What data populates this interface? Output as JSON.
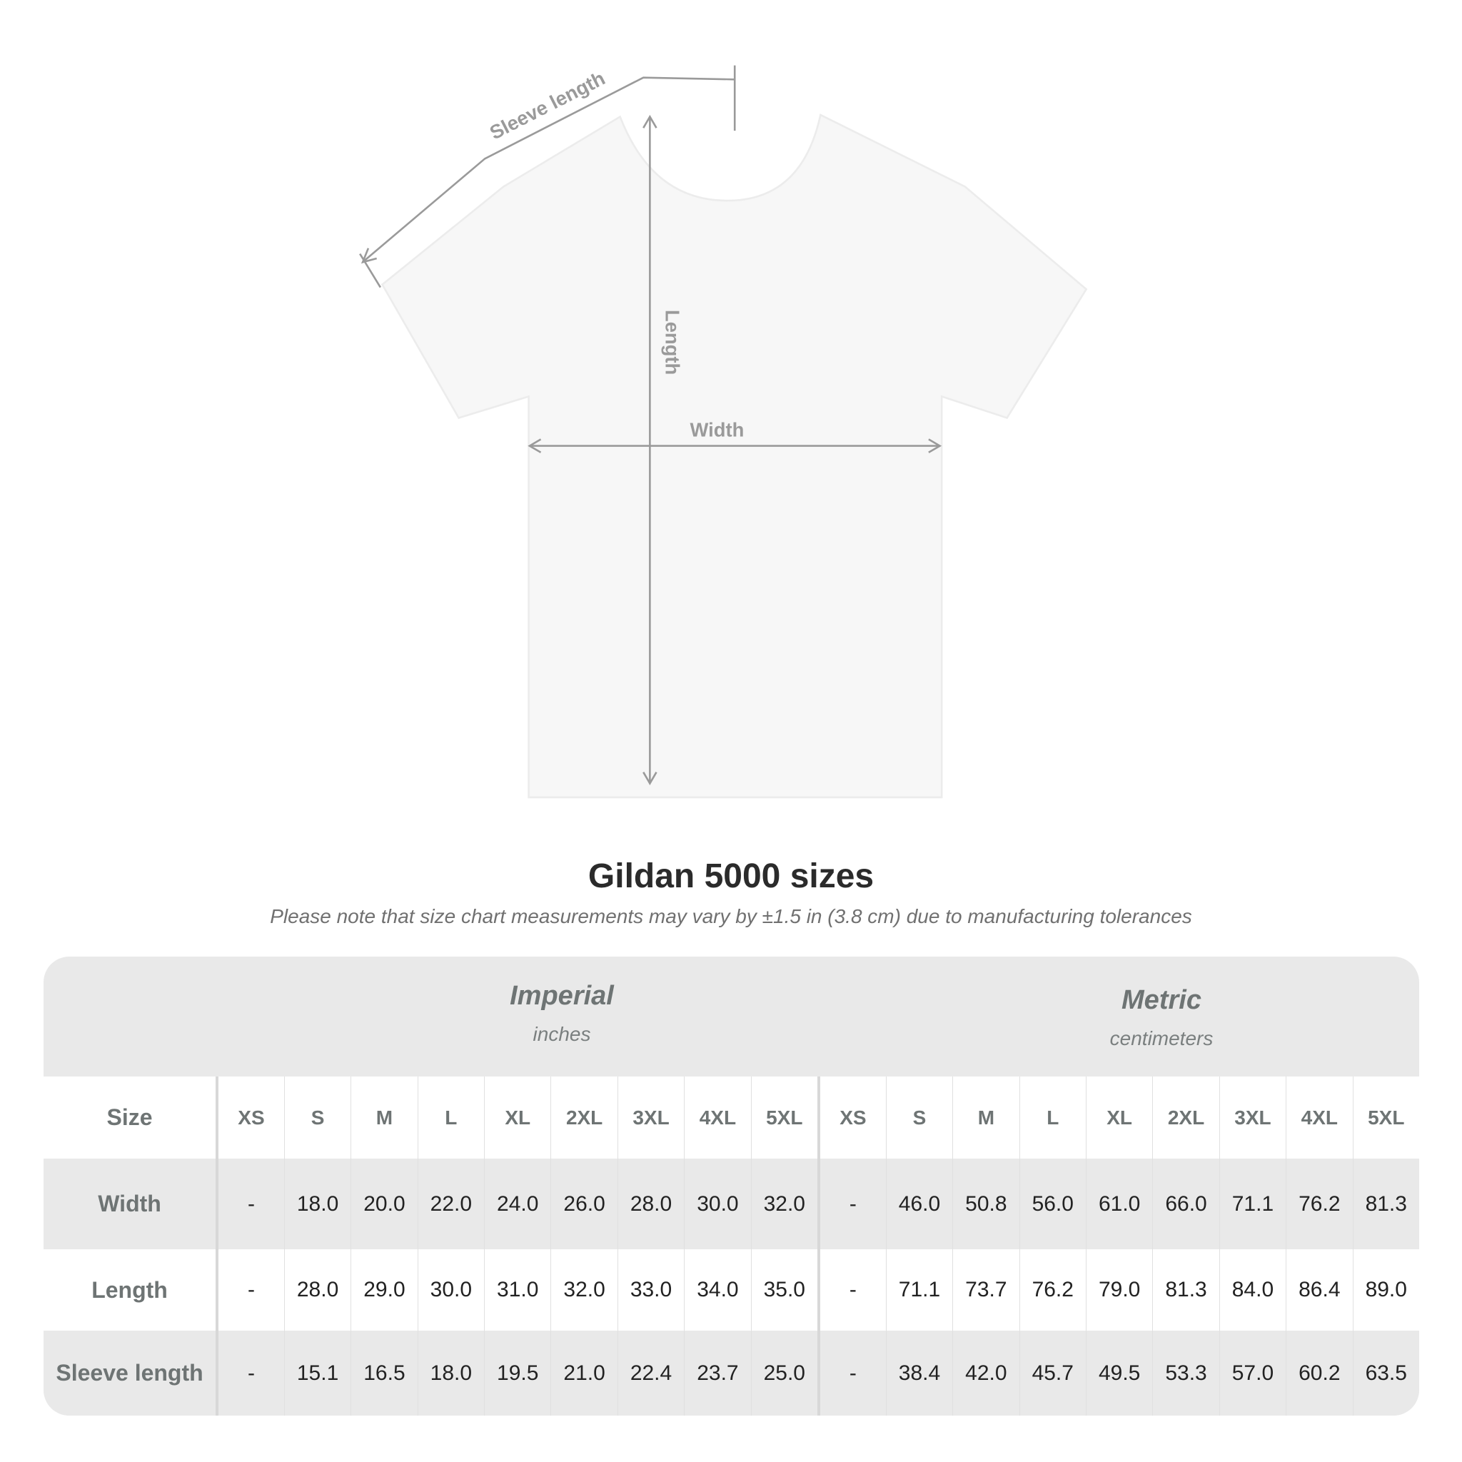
{
  "diagram": {
    "labels": {
      "sleeve": "Sleeve length",
      "length": "Length",
      "width": "Width"
    },
    "shirt_color": "#f7f7f7",
    "line_color": "#9a9a9a"
  },
  "title": "Gildan 5000 sizes",
  "subtitle": "Please note that size chart measurements may vary by ±1.5 in (3.8 cm) due to manufacturing tolerances",
  "table": {
    "imperial": {
      "name": "Imperial",
      "unit": "inches"
    },
    "metric": {
      "name": "Metric",
      "unit": "centimeters"
    },
    "size_label": "Size",
    "sizes": [
      "XS",
      "S",
      "M",
      "L",
      "XL",
      "2XL",
      "3XL",
      "4XL",
      "5XL"
    ],
    "rows": [
      {
        "label": "Width",
        "imperial": [
          "-",
          "18.0",
          "20.0",
          "22.0",
          "24.0",
          "26.0",
          "28.0",
          "30.0",
          "32.0"
        ],
        "metric": [
          "-",
          "46.0",
          "50.8",
          "56.0",
          "61.0",
          "66.0",
          "71.1",
          "76.2",
          "81.3"
        ]
      },
      {
        "label": "Length",
        "imperial": [
          "-",
          "28.0",
          "29.0",
          "30.0",
          "31.0",
          "32.0",
          "33.0",
          "34.0",
          "35.0"
        ],
        "metric": [
          "-",
          "71.1",
          "73.7",
          "76.2",
          "79.0",
          "81.3",
          "84.0",
          "86.4",
          "89.0"
        ]
      },
      {
        "label": "Sleeve length",
        "imperial": [
          "-",
          "15.1",
          "16.5",
          "18.0",
          "19.5",
          "21.0",
          "22.4",
          "23.7",
          "25.0"
        ],
        "metric": [
          "-",
          "38.4",
          "42.0",
          "45.7",
          "49.5",
          "53.3",
          "57.0",
          "60.2",
          "63.5"
        ]
      }
    ]
  }
}
